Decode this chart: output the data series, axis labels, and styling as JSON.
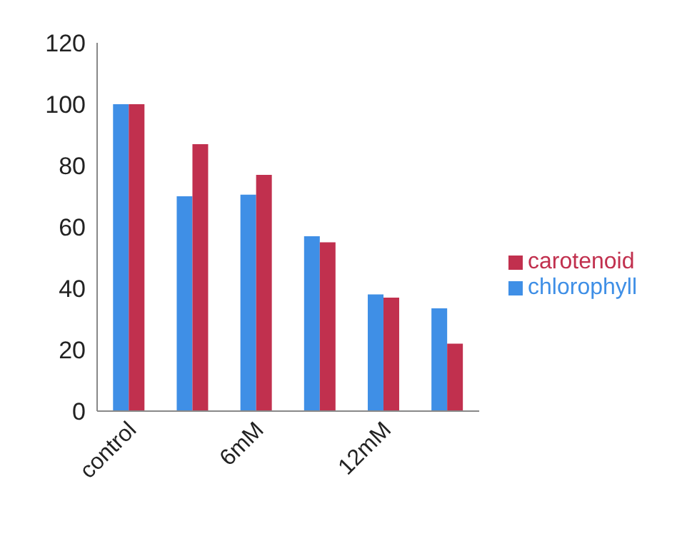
{
  "chart_data": {
    "type": "bar",
    "categories": [
      "control",
      null,
      "6mM",
      null,
      "12mM",
      null
    ],
    "series": [
      {
        "name": "chlorophyll",
        "color": "#3f8fe6",
        "values": [
          100,
          70,
          70.5,
          57,
          38,
          33.5
        ]
      },
      {
        "name": "carotenoid",
        "color": "#c1304e",
        "values": [
          100,
          87,
          77,
          55,
          37,
          22
        ]
      }
    ],
    "ylim": [
      0,
      120
    ],
    "yticks": [
      0,
      20,
      40,
      60,
      80,
      100,
      120
    ],
    "grid": false,
    "legend": "right"
  }
}
